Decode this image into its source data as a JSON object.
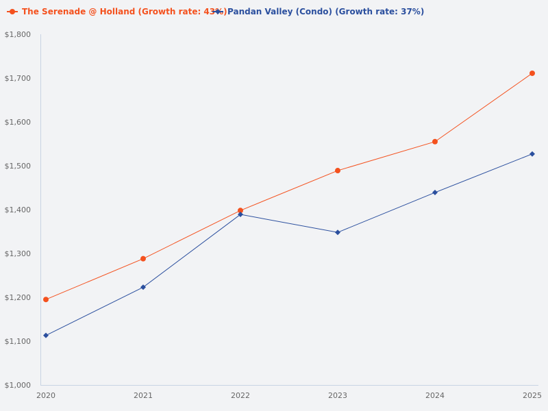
{
  "chart_data": {
    "type": "line",
    "x": [
      "2020",
      "2021",
      "2022",
      "2023",
      "2024",
      "2025"
    ],
    "ylim": [
      1000,
      1800
    ],
    "yticks": [
      "$1,000",
      "$1,100",
      "$1,200",
      "$1,300",
      "$1,400",
      "$1,500",
      "$1,600",
      "$1,700",
      "$1,800"
    ],
    "ytick_values": [
      1000,
      1100,
      1200,
      1300,
      1400,
      1500,
      1600,
      1700,
      1800
    ],
    "grid": false,
    "legend": "top-left",
    "series": [
      {
        "name": "The Serenade @ Holland (Growth rate: 43%)",
        "color": "#f4511e",
        "marker": "circle",
        "values": [
          1195,
          1288,
          1398,
          1489,
          1555,
          1711
        ]
      },
      {
        "name": "Pandan Valley (Condo) (Growth rate: 37%)",
        "color": "#2b4f9e",
        "marker": "diamond",
        "values": [
          1113,
          1223,
          1389,
          1348,
          1439,
          1527
        ]
      }
    ]
  }
}
